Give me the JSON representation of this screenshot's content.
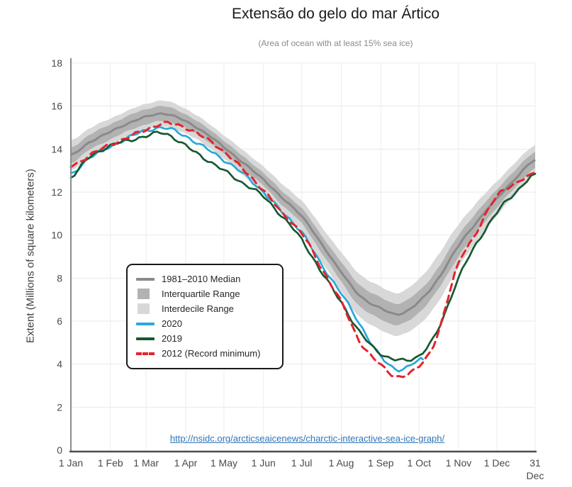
{
  "page": {
    "title": "Extensão do gelo do mar Ártico",
    "subtitle": "(Area of ocean with at least 15% sea ice)"
  },
  "footer": {
    "link_text": "http://nsidc.org/arcticseaicenews/charctic-interactive-sea-ice-graph/"
  },
  "chart_data": {
    "type": "line",
    "title": "Extensão do gelo do mar Ártico",
    "subtitle": "(Area of ocean with at least 15% sea ice)",
    "xlabel": "",
    "ylabel": "Extent (Millions of square kilometers)",
    "ylim": [
      0,
      18
    ],
    "grid": true,
    "legend_position": "middle-left",
    "y_ticks": [
      0,
      2,
      4,
      6,
      8,
      10,
      12,
      14,
      16,
      18
    ],
    "x_ticks": [
      {
        "label": "1 Jan",
        "day": 1
      },
      {
        "label": "1 Feb",
        "day": 32
      },
      {
        "label": "1 Mar",
        "day": 60
      },
      {
        "label": "1 Apr",
        "day": 91
      },
      {
        "label": "1 May",
        "day": 121
      },
      {
        "label": "1 Jun",
        "day": 152
      },
      {
        "label": "1 Jul",
        "day": 182
      },
      {
        "label": "1 Aug",
        "day": 213
      },
      {
        "label": "1 Sep",
        "day": 244
      },
      {
        "label": "1 Oct",
        "day": 274
      },
      {
        "label": "1 Nov",
        "day": 305
      },
      {
        "label": "1 Dec",
        "day": 335
      },
      {
        "label": "31 Dec",
        "day": 365,
        "two_line": true
      }
    ],
    "colors": {
      "median": "#8a8a8a",
      "interquartile": "#b2b2b2",
      "interdecile": "#d8d8d8",
      "y2020": "#29a8dc",
      "y2019": "#155932",
      "y2012": "#e2242c",
      "grid": "#e9e9e9",
      "axis_left": "#8c8c8c",
      "axis_bottom": "#4d4d4d",
      "tick_text": "#4a4a4a",
      "link": "#2e75b6"
    },
    "median_band": {
      "name": "1981-2010 Median",
      "days": [
        1,
        15,
        32,
        46,
        60,
        74,
        91,
        105,
        121,
        135,
        152,
        166,
        182,
        196,
        213,
        227,
        244,
        258,
        274,
        288,
        305,
        319,
        335,
        349,
        365
      ],
      "median": [
        13.7,
        14.3,
        14.8,
        15.2,
        15.5,
        15.65,
        15.3,
        14.8,
        14.1,
        13.4,
        12.6,
        11.75,
        10.9,
        9.7,
        8.3,
        7.2,
        6.6,
        6.32,
        6.9,
        7.9,
        9.5,
        10.6,
        11.7,
        12.6,
        13.5
      ],
      "interquartile_offset": [
        0.35,
        0.35,
        0.35,
        0.35,
        0.35,
        0.35,
        0.32,
        0.3,
        0.3,
        0.3,
        0.3,
        0.32,
        0.35,
        0.4,
        0.45,
        0.5,
        0.5,
        0.5,
        0.5,
        0.5,
        0.5,
        0.45,
        0.42,
        0.4,
        0.38
      ],
      "interdecile_offset": [
        0.7,
        0.65,
        0.62,
        0.6,
        0.6,
        0.6,
        0.58,
        0.55,
        0.55,
        0.58,
        0.6,
        0.65,
        0.7,
        0.8,
        0.9,
        1.0,
        1.0,
        1.0,
        1.05,
        1.1,
        1.0,
        0.9,
        0.8,
        0.75,
        0.7
      ]
    },
    "series": [
      {
        "name": "2020",
        "style": "solid",
        "color": "#29a8dc",
        "days": [
          1,
          15,
          32,
          46,
          60,
          74,
          91,
          105,
          121,
          135,
          152,
          166,
          182,
          196,
          213,
          227,
          244,
          258,
          274,
          277
        ],
        "values": [
          12.8,
          13.6,
          14.1,
          14.55,
          14.85,
          15.0,
          14.6,
          14.1,
          13.5,
          12.9,
          12.0,
          11.1,
          10.15,
          8.75,
          7.3,
          5.9,
          4.35,
          3.75,
          4.15,
          4.22
        ]
      },
      {
        "name": "2019",
        "style": "solid",
        "color": "#155932",
        "days": [
          1,
          15,
          32,
          46,
          60,
          74,
          91,
          105,
          121,
          135,
          152,
          166,
          182,
          196,
          213,
          227,
          244,
          258,
          274,
          288,
          305,
          319,
          335,
          349,
          365
        ],
        "values": [
          12.7,
          13.6,
          14.15,
          14.4,
          14.6,
          14.75,
          14.15,
          13.6,
          13.0,
          12.45,
          11.8,
          10.9,
          9.8,
          8.4,
          6.9,
          5.5,
          4.5,
          4.18,
          4.4,
          5.5,
          8.0,
          9.6,
          11.05,
          11.95,
          12.85
        ]
      },
      {
        "name": "2012 (Record minimum)",
        "style": "dashed",
        "color": "#e2242c",
        "days": [
          1,
          15,
          32,
          46,
          60,
          74,
          91,
          105,
          121,
          135,
          152,
          166,
          182,
          196,
          213,
          227,
          244,
          258,
          274,
          288,
          305,
          319,
          335,
          349,
          365
        ],
        "values": [
          13.2,
          13.7,
          14.2,
          14.55,
          14.9,
          15.2,
          15.0,
          14.55,
          13.9,
          13.1,
          12.1,
          11.05,
          10.1,
          8.6,
          6.9,
          5.1,
          3.95,
          3.42,
          3.9,
          5.3,
          8.7,
          10.1,
          11.85,
          12.35,
          12.9
        ]
      }
    ],
    "legend": [
      {
        "label": "1981–2010 Median",
        "swatch": "line",
        "color": "#8a8a8a"
      },
      {
        "label": "Interquartile Range",
        "swatch": "box",
        "color": "#b2b2b2"
      },
      {
        "label": "Interdecile Range",
        "swatch": "box",
        "color": "#d8d8d8"
      },
      {
        "label": "2020",
        "swatch": "line",
        "color": "#29a8dc"
      },
      {
        "label": "2019",
        "swatch": "line",
        "color": "#155932"
      },
      {
        "label": "2012 (Record minimum)",
        "swatch": "dashed",
        "color": "#e2242c"
      }
    ]
  }
}
